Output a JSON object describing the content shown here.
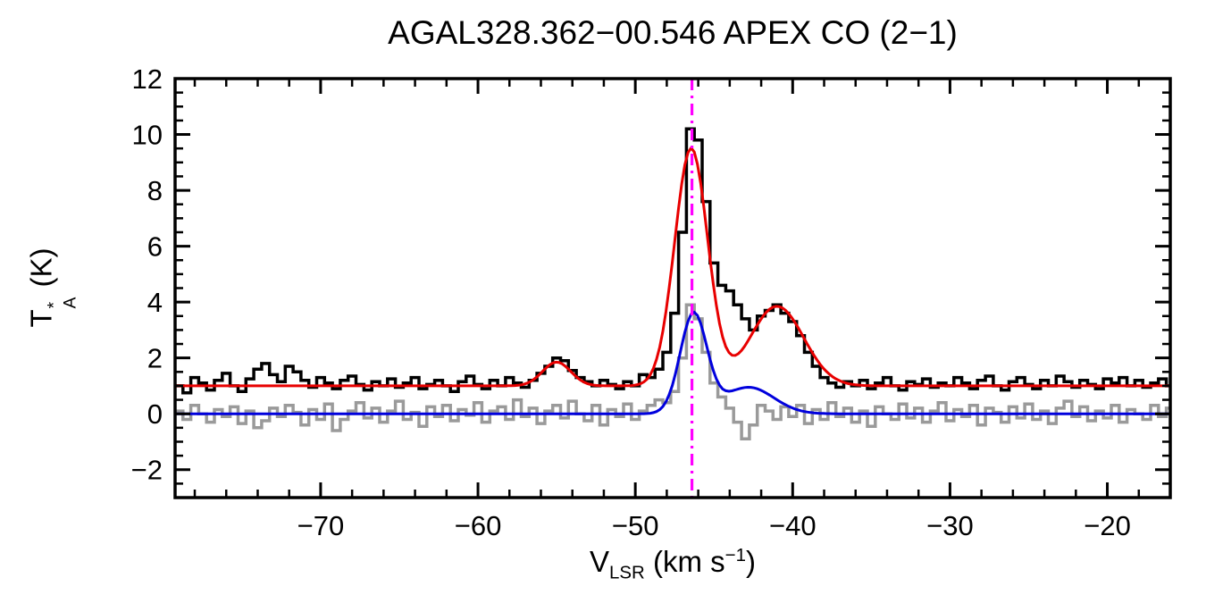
{
  "figure": {
    "background": "#ffffff"
  },
  "axes": {
    "ylabel": {
      "base": "T",
      "sup": "*",
      "sub": "A",
      "unit": " (K)"
    },
    "xlabel": {
      "base": "V",
      "sub": "LSR",
      "unit_pre": " (km s",
      "unit_sup": "−1",
      "unit_post": ")"
    }
  },
  "chart_data": {
    "type": "line",
    "title": "AGAL328.362−00.546  APEX CO (2−1)",
    "xlabel": "V_LSR (km s^-1)",
    "ylabel": "T_A^* (K)",
    "xlim": [
      -79.25,
      -16
    ],
    "ylim": [
      -3,
      12
    ],
    "x_major_ticks": [
      -70,
      -60,
      -50,
      -40,
      -30,
      -20
    ],
    "x_minor_step": 2,
    "y_major_ticks": [
      -2,
      0,
      2,
      4,
      6,
      8,
      10,
      12
    ],
    "y_minor_step": 0.5,
    "grid": false,
    "legend": false,
    "x": {
      "start": -79,
      "step": 0.5,
      "n": 127
    },
    "series": [
      {
        "name": "observed-spectrum",
        "style": "histogram",
        "color": "#000000",
        "values": [
          1.0,
          0.75,
          1.3,
          1.1,
          0.85,
          1.2,
          1.45,
          1.0,
          0.8,
          1.25,
          1.6,
          1.8,
          1.4,
          1.15,
          1.7,
          1.5,
          1.2,
          0.95,
          1.3,
          1.1,
          0.9,
          1.2,
          1.35,
          1.05,
          0.85,
          1.15,
          1.0,
          1.25,
          0.95,
          1.1,
          1.3,
          0.9,
          1.05,
          1.2,
          1.0,
          0.8,
          1.15,
          1.35,
          1.05,
          0.9,
          1.2,
          1.0,
          1.3,
          1.1,
          0.95,
          1.2,
          1.45,
          1.7,
          2.0,
          1.9,
          1.55,
          1.3,
          1.15,
          1.0,
          1.2,
          1.05,
          0.9,
          1.15,
          1.0,
          1.4,
          1.3,
          1.6,
          2.2,
          3.6,
          6.5,
          10.2,
          9.8,
          7.6,
          5.4,
          4.6,
          4.4,
          3.9,
          3.4,
          3.0,
          3.5,
          3.7,
          3.9,
          3.6,
          3.3,
          2.8,
          2.2,
          1.7,
          1.3,
          1.1,
          0.95,
          1.15,
          1.0,
          1.2,
          0.9,
          1.1,
          1.3,
          1.0,
          0.85,
          1.15,
          1.05,
          1.25,
          0.95,
          1.1,
          1.0,
          1.3,
          1.1,
          0.9,
          1.2,
          1.35,
          1.0,
          0.85,
          1.15,
          1.3,
          1.05,
          0.9,
          1.2,
          1.0,
          1.35,
          1.15,
          0.95,
          1.2,
          1.05,
          0.9,
          1.25,
          1.1,
          1.3,
          1.0,
          1.2,
          0.95,
          1.1,
          1.25,
          1.0
        ]
      },
      {
        "name": "total-fit",
        "style": "gaussian-sum",
        "color": "#e80000",
        "baseline": 1.0,
        "components": [
          {
            "center": -55.0,
            "amp": 0.85,
            "sigma": 0.9
          },
          {
            "center": -46.45,
            "amp": 8.5,
            "sigma": 1.05
          },
          {
            "center": -41.0,
            "amp": 2.85,
            "sigma": 1.7
          }
        ]
      },
      {
        "name": "residual-spectrum",
        "style": "histogram",
        "color": "#9a9a9a",
        "values": [
          0.1,
          -0.2,
          0.3,
          0.0,
          -0.3,
          0.15,
          -0.1,
          0.25,
          -0.35,
          0.1,
          -0.5,
          -0.25,
          0.2,
          -0.1,
          0.3,
          0.05,
          -0.4,
          0.15,
          -0.2,
          0.35,
          -0.6,
          -0.2,
          0.1,
          0.4,
          -0.15,
          0.2,
          -0.3,
          0.1,
          0.45,
          -0.2,
          0.05,
          -0.45,
          0.25,
          -0.1,
          0.3,
          -0.25,
          0.15,
          -0.05,
          0.4,
          -0.3,
          0.1,
          0.25,
          -0.2,
          0.5,
          -0.1,
          0.2,
          -0.35,
          0.1,
          0.3,
          -0.15,
          0.45,
          0.0,
          -0.25,
          0.3,
          -0.4,
          0.15,
          -0.1,
          0.35,
          -0.2,
          0.1,
          0.3,
          0.5,
          0.4,
          0.8,
          2.0,
          3.9,
          3.4,
          2.2,
          1.1,
          0.6,
          0.2,
          -0.3,
          -0.9,
          -0.4,
          0.3,
          0.1,
          -0.2,
          0.25,
          -0.1,
          0.3,
          -0.35,
          0.15,
          -0.2,
          0.4,
          -0.1,
          0.2,
          -0.3,
          0.1,
          -0.45,
          0.25,
          0.0,
          -0.2,
          0.35,
          -0.15,
          0.2,
          -0.3,
          0.1,
          0.4,
          -0.25,
          0.15,
          -0.1,
          0.3,
          -0.4,
          0.2,
          0.05,
          -0.3,
          0.25,
          -0.15,
          0.35,
          -0.2,
          0.1,
          -0.35,
          0.2,
          0.45,
          -0.1,
          0.25,
          -0.25,
          0.1,
          -0.15,
          0.3,
          -0.3,
          0.15,
          0.0,
          -0.2,
          0.3,
          -0.1,
          0.2
        ]
      },
      {
        "name": "component-fit",
        "style": "gaussian-sum",
        "color": "#0000dd",
        "baseline": 0.0,
        "components": [
          {
            "center": -46.3,
            "amp": 3.55,
            "sigma": 0.85
          },
          {
            "center": -42.8,
            "amp": 0.95,
            "sigma": 1.6
          }
        ]
      }
    ],
    "vline": {
      "x": -46.4,
      "color": "#ff00ff",
      "style": "dash-dot"
    }
  }
}
